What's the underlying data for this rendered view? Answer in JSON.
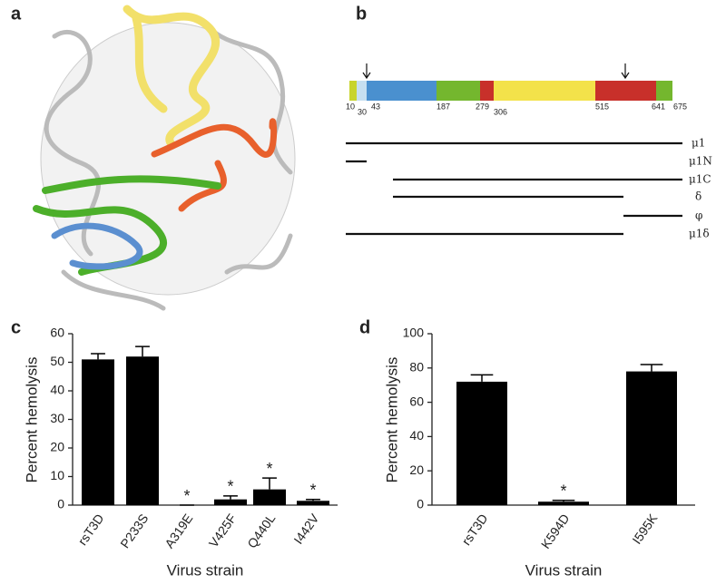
{
  "panel_labels": [
    "a",
    "b",
    "c",
    "d"
  ],
  "domain_diagram": {
    "position_labels": [
      "10",
      "30",
      "43",
      "187",
      "279",
      "306",
      "515",
      "641",
      "675"
    ],
    "fragments": [
      "μ1",
      "μ1N",
      "μ1C",
      "δ",
      "φ",
      "μ1δ"
    ]
  },
  "chart_data": [
    {
      "type": "bar",
      "categories": [
        "rsT3D",
        "P233S",
        "A319E",
        "V425F",
        "Q440L",
        "I442V"
      ],
      "values": [
        51,
        52,
        0,
        2,
        5.5,
        1.5
      ],
      "errors": [
        2,
        3.5,
        0,
        1.2,
        4,
        0.5
      ],
      "significance": [
        null,
        null,
        "*",
        "*",
        "*",
        "*"
      ],
      "color": "#000000",
      "ylim": [
        0,
        60
      ],
      "yticks": [
        0,
        10,
        20,
        30,
        40,
        50,
        60
      ],
      "x_label": "Virus strain",
      "y_label": "Percent hemolysis"
    },
    {
      "type": "bar",
      "categories": [
        "rsT3D",
        "K594D",
        "I595K"
      ],
      "values": [
        72,
        2,
        78
      ],
      "errors": [
        4,
        0.8,
        4
      ],
      "significance": [
        null,
        "*",
        null
      ],
      "color": "#000000",
      "ylim": [
        0,
        100
      ],
      "yticks": [
        0,
        20,
        40,
        60,
        80,
        100
      ],
      "x_label": "Virus strain",
      "y_label": "Percent hemolysis"
    }
  ]
}
